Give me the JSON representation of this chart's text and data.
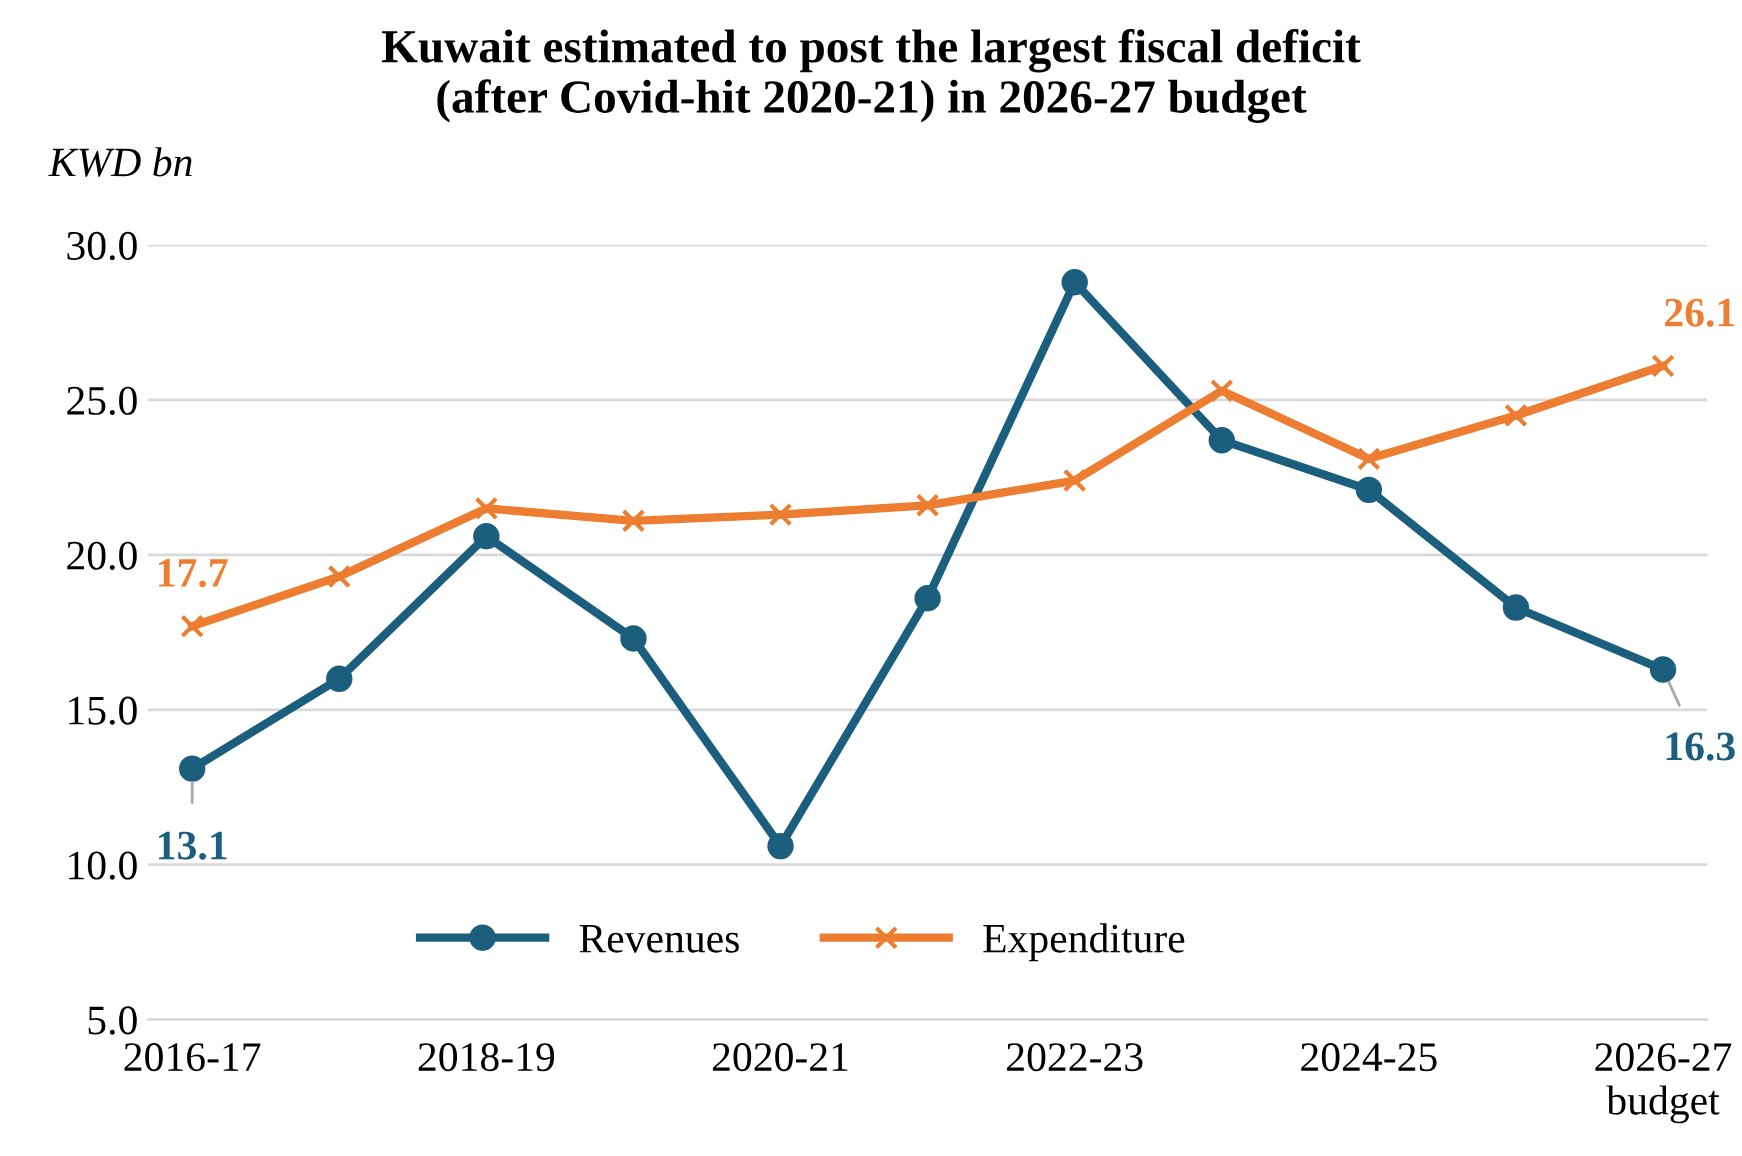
{
  "chart_data": {
    "type": "line",
    "title": "Kuwait estimated to post the largest fiscal deficit\n(after Covid-hit 2020-21) in 2026-27 budget",
    "ylabel": "KWD bn",
    "categories": [
      "2016-17",
      null,
      "2018-19",
      null,
      "2020-21",
      null,
      "2022-23",
      null,
      "2024-25",
      null,
      "2026-27\nbudget"
    ],
    "series": [
      {
        "name": "Revenues",
        "color": "#1b5e7e",
        "marker": "circle",
        "values": [
          13.1,
          16.0,
          20.6,
          17.3,
          10.6,
          18.6,
          28.8,
          23.7,
          22.1,
          18.3,
          16.3
        ],
        "value_labels": [
          "13.1",
          null,
          null,
          null,
          null,
          null,
          null,
          null,
          null,
          null,
          "16.3"
        ]
      },
      {
        "name": "Expenditure",
        "color": "#ed7d31",
        "marker": "cross",
        "values": [
          17.7,
          19.3,
          21.5,
          21.1,
          21.3,
          21.6,
          22.4,
          25.3,
          23.1,
          24.5,
          26.1
        ],
        "value_labels": [
          "17.7",
          null,
          null,
          null,
          null,
          null,
          null,
          null,
          null,
          null,
          "26.1"
        ]
      }
    ],
    "ylim": [
      5,
      30
    ],
    "yticks": [
      {
        "value": 5,
        "label": "5.0"
      },
      {
        "value": 10,
        "label": "10.0"
      },
      {
        "value": 15,
        "label": "15.0"
      },
      {
        "value": 20,
        "label": "20.0"
      },
      {
        "value": 25,
        "label": "25.0"
      },
      {
        "value": 30,
        "label": "30.0"
      }
    ],
    "grid": "y",
    "legend": "bottom"
  }
}
